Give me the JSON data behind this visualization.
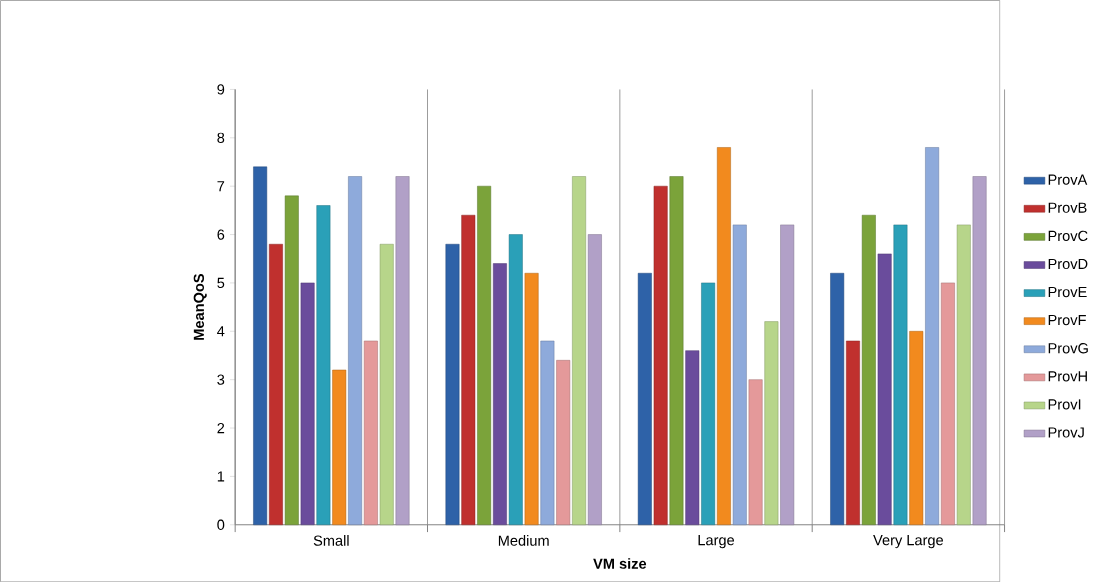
{
  "chart_data": {
    "type": "bar",
    "xlabel": "VM size",
    "ylabel": "MeanQoS",
    "categories": [
      "Small",
      "Medium",
      "Large",
      "Very Large"
    ],
    "series": [
      {
        "name": "ProvA",
        "color": "#2e62a8",
        "values": [
          7.4,
          5.8,
          5.2,
          5.2
        ]
      },
      {
        "name": "ProvB",
        "color": "#c0302e",
        "values": [
          5.8,
          6.4,
          7.0,
          3.8
        ]
      },
      {
        "name": "ProvC",
        "color": "#7ba33a",
        "values": [
          6.8,
          7.0,
          7.2,
          6.4
        ]
      },
      {
        "name": "ProvD",
        "color": "#6a4c9c",
        "values": [
          5.0,
          5.4,
          3.6,
          5.6
        ]
      },
      {
        "name": "ProvE",
        "color": "#2aa0b8",
        "values": [
          6.6,
          6.0,
          5.0,
          6.2
        ]
      },
      {
        "name": "ProvF",
        "color": "#f28a1e",
        "values": [
          3.2,
          5.2,
          7.8,
          4.0
        ]
      },
      {
        "name": "ProvG",
        "color": "#8eaadb",
        "values": [
          7.2,
          3.8,
          6.2,
          7.8
        ]
      },
      {
        "name": "ProvH",
        "color": "#e4999a",
        "values": [
          3.8,
          3.4,
          3.0,
          5.0
        ]
      },
      {
        "name": "ProvI",
        "color": "#b7d58a",
        "values": [
          5.8,
          7.2,
          4.2,
          6.2
        ]
      },
      {
        "name": "ProvJ",
        "color": "#b1a0c7",
        "values": [
          7.2,
          6.0,
          6.2,
          7.2
        ]
      }
    ],
    "ylim": [
      0,
      9
    ],
    "yticks": [
      0,
      1,
      2,
      3,
      4,
      5,
      6,
      7,
      8,
      9
    ],
    "grid": "x",
    "legend": "right"
  }
}
